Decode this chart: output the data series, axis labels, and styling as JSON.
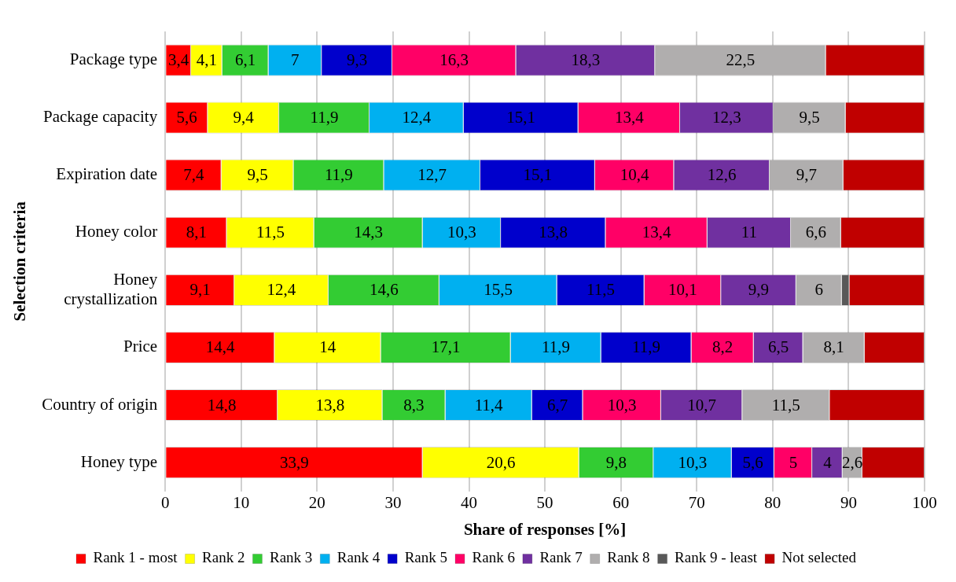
{
  "chart_data": {
    "type": "bar",
    "orientation": "horizontal",
    "stacked": true,
    "xlabel": "Share of responses [%]",
    "ylabel": "Selection criteria",
    "categories": [
      "Package type",
      "Package capacity",
      "Expiration date",
      "Honey color",
      "Honey crystallization",
      "Price",
      "Country of origin",
      "Honey type"
    ],
    "xlim": [
      0,
      100
    ],
    "xticks": [
      0,
      10,
      20,
      30,
      40,
      50,
      60,
      70,
      80,
      90,
      100
    ],
    "grid": "x",
    "legend": "bottom",
    "series": [
      {
        "name": "Rank 1 - most",
        "color": "#ff0000",
        "values": [
          3.4,
          5.6,
          7.4,
          8.1,
          9.1,
          14.4,
          14.8,
          33.9
        ],
        "value_labels": [
          "3,4",
          "5,6",
          "7,4",
          "8,1",
          "9,1",
          "14,4",
          "14,8",
          "33,9"
        ]
      },
      {
        "name": "Rank 2",
        "color": "#ffff00",
        "values": [
          4.1,
          9.4,
          9.5,
          11.5,
          12.4,
          14,
          13.8,
          20.6
        ],
        "value_labels": [
          "4,1",
          "9,4",
          "9,5",
          "11,5",
          "12,4",
          "14",
          "13,8",
          "20,6"
        ]
      },
      {
        "name": "Rank 3",
        "color": "#33cc33",
        "values": [
          6.1,
          11.9,
          11.9,
          14.3,
          14.6,
          17.1,
          8.3,
          9.8
        ],
        "value_labels": [
          "6,1",
          "11,9",
          "11,9",
          "14,3",
          "14,6",
          "17,1",
          "8,3",
          "9,8"
        ]
      },
      {
        "name": "Rank 4",
        "color": "#00b0f0",
        "values": [
          7,
          12.4,
          12.7,
          10.3,
          15.5,
          11.9,
          11.4,
          10.3
        ],
        "value_labels": [
          "7",
          "12,4",
          "12,7",
          "10,3",
          "15,5",
          "11,9",
          "11,4",
          "10,3"
        ]
      },
      {
        "name": "Rank 5",
        "color": "#0000cc",
        "values": [
          9.3,
          15.1,
          15.1,
          13.8,
          11.5,
          11.9,
          6.7,
          5.6
        ],
        "value_labels": [
          "9,3",
          "15,1",
          "15,1",
          "13,8",
          "11,5",
          "11,9",
          "6,7",
          "5,6"
        ]
      },
      {
        "name": "Rank 6",
        "color": "#ff0066",
        "values": [
          16.3,
          13.4,
          10.4,
          13.4,
          10.1,
          8.2,
          10.3,
          5
        ],
        "value_labels": [
          "16,3",
          "13,4",
          "10,4",
          "13,4",
          "10,1",
          "8,2",
          "10,3",
          "5"
        ]
      },
      {
        "name": "Rank 7",
        "color": "#7030a0",
        "values": [
          18.3,
          12.3,
          12.6,
          11,
          9.9,
          6.5,
          10.7,
          4
        ],
        "value_labels": [
          "18,3",
          "12,3",
          "12,6",
          "11",
          "9,9",
          "6,5",
          "10,7",
          "4"
        ]
      },
      {
        "name": "Rank 8",
        "color": "#b0aeae",
        "values": [
          22.5,
          9.5,
          9.7,
          6.6,
          6,
          8.1,
          11.5,
          2.6
        ],
        "value_labels": [
          "22,5",
          "9,5",
          "9,7",
          "6,6",
          "6",
          "8,1",
          "11,5",
          "2,6"
        ]
      },
      {
        "name": "Rank 9 - least",
        "color": "#595959",
        "values": [
          null,
          null,
          null,
          null,
          1,
          null,
          null,
          null
        ]
      },
      {
        "name": "Not selected",
        "color": "#c00000",
        "values": [
          13,
          10.4,
          10.7,
          11,
          9.9,
          7.9,
          12.5,
          8.2
        ]
      }
    ]
  }
}
